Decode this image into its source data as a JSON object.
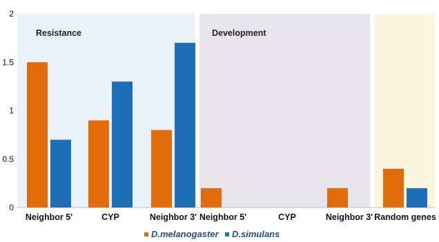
{
  "chart_data": {
    "type": "bar",
    "panels": [
      {
        "title": "Resistance",
        "background": "#eaf2fc",
        "categories": [
          "Neighbor 5'",
          "CYP",
          "Neighbor 3'"
        ]
      },
      {
        "title": "Development",
        "background": "#e8e6ec",
        "categories": [
          "Neighbor 5'",
          "CYP",
          "Neighbor 3'"
        ]
      },
      {
        "title": "",
        "background": "#fdf5de",
        "categories": [
          "Random genes"
        ]
      }
    ],
    "categories": [
      "Neighbor 5'",
      "CYP",
      "Neighbor 3'",
      "Neighbor 5'",
      "CYP",
      "Neighbor 3'",
      "Random genes"
    ],
    "series": [
      {
        "name": "D.melanogaster",
        "color": "#e36c0a",
        "values": [
          1.5,
          0.9,
          0.8,
          0.2,
          0,
          0.2,
          0.4
        ]
      },
      {
        "name": "D.simulans",
        "color": "#1f6fb8",
        "values": [
          0.7,
          1.3,
          1.7,
          0,
          0,
          0,
          0.2
        ]
      }
    ],
    "ylim": [
      0,
      2
    ],
    "yticks": [
      {
        "value": 0,
        "label": "0"
      },
      {
        "value": 0.5,
        "label": "0.5"
      },
      {
        "value": 1,
        "label": "1"
      },
      {
        "value": 1.5,
        "label": "1.5"
      },
      {
        "value": 2,
        "label": "2"
      }
    ],
    "xlabel": "",
    "ylabel": "",
    "grid": false,
    "legend_position": "bottom-center"
  }
}
